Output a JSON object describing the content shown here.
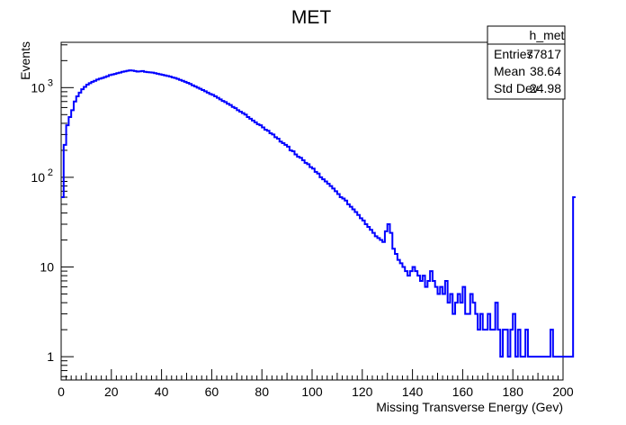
{
  "chart_data": {
    "type": "histogram",
    "title": "MET",
    "xlabel": "Missing Transverse Energy (Gev)",
    "ylabel": "Events",
    "xlim": [
      0,
      200
    ],
    "ylim": [
      0.55,
      3200
    ],
    "yscale": "log",
    "grid": false,
    "line_color": "#0000ff",
    "x_ticks": [
      0,
      20,
      40,
      60,
      80,
      100,
      120,
      140,
      160,
      180,
      200
    ],
    "x_tick_labels": [
      "0",
      "20",
      "40",
      "60",
      "80",
      "100",
      "120",
      "140",
      "160",
      "180",
      "200"
    ],
    "y_ticks": [
      {
        "value": 1,
        "label": "1"
      },
      {
        "value": 10,
        "label": "10"
      },
      {
        "value": 100,
        "base": "10",
        "exp": "2"
      },
      {
        "value": 1000,
        "base": "10",
        "exp": "3"
      }
    ],
    "bin_width": 1,
    "values": [
      60,
      230,
      380,
      470,
      560,
      700,
      800,
      880,
      960,
      1020,
      1080,
      1120,
      1160,
      1190,
      1230,
      1260,
      1280,
      1310,
      1340,
      1380,
      1400,
      1420,
      1450,
      1470,
      1500,
      1520,
      1540,
      1560,
      1550,
      1530,
      1510,
      1520,
      1530,
      1500,
      1490,
      1480,
      1470,
      1450,
      1430,
      1410,
      1390,
      1370,
      1350,
      1330,
      1300,
      1280,
      1250,
      1220,
      1190,
      1160,
      1130,
      1100,
      1060,
      1030,
      1000,
      970,
      940,
      910,
      880,
      850,
      830,
      800,
      770,
      740,
      710,
      690,
      660,
      640,
      610,
      590,
      560,
      540,
      520,
      500,
      470,
      450,
      430,
      410,
      390,
      380,
      360,
      340,
      330,
      310,
      300,
      280,
      270,
      250,
      240,
      230,
      220,
      200,
      195,
      180,
      170,
      165,
      155,
      145,
      140,
      130,
      125,
      115,
      110,
      100,
      95,
      90,
      85,
      80,
      75,
      70,
      65,
      60,
      58,
      55,
      50,
      47,
      44,
      41,
      38,
      35,
      33,
      30,
      28,
      26,
      24,
      22,
      21,
      20,
      19,
      25,
      30,
      24,
      16,
      14,
      12,
      11,
      10,
      9,
      8,
      9,
      10,
      9,
      8,
      7,
      8,
      6,
      7,
      9,
      7,
      6,
      5,
      6,
      5,
      7,
      4,
      5,
      3,
      4,
      5,
      4,
      6,
      3,
      3,
      5,
      4,
      3,
      2,
      3,
      2,
      2,
      3,
      2,
      2,
      4,
      2,
      1,
      2,
      2,
      1,
      2,
      3,
      1,
      2,
      1,
      1,
      2,
      1,
      1,
      1,
      1,
      1,
      1,
      1,
      1,
      1,
      2,
      1,
      1,
      1,
      1,
      1,
      1,
      1,
      1,
      60
    ],
    "stats": {
      "name": "h_met",
      "rows": [
        {
          "label": "Entries",
          "value": "77817"
        },
        {
          "label": "Mean",
          "value": "38.64"
        },
        {
          "label": "Std Dev",
          "value": "24.98"
        }
      ]
    }
  }
}
